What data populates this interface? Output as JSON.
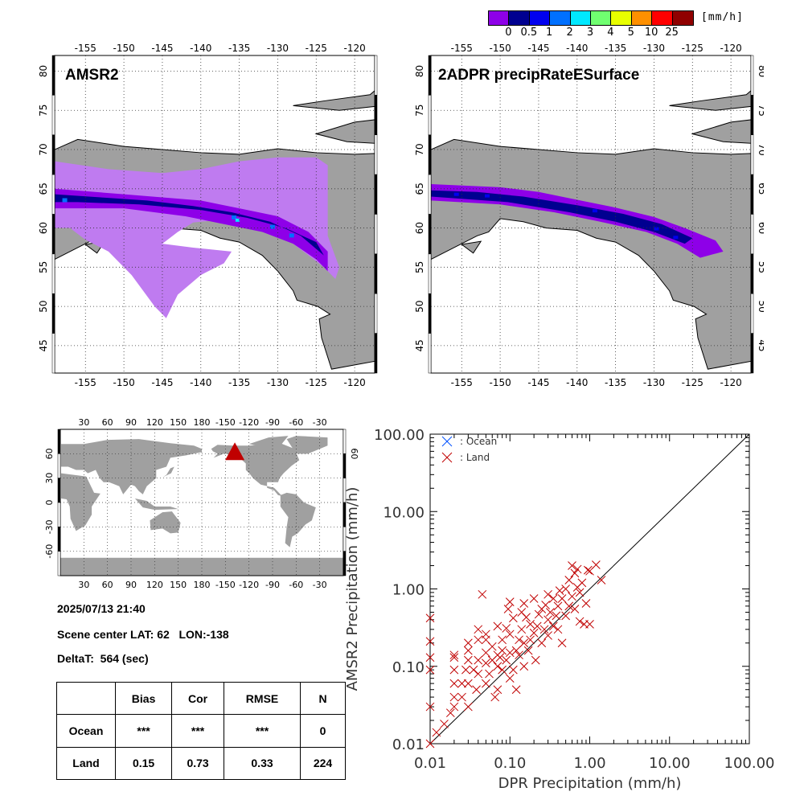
{
  "colorbar": {
    "units": "[mm/h]",
    "colors": [
      "#8e00e8",
      "#000090",
      "#0000f0",
      "#0070ff",
      "#00e8ff",
      "#70ff70",
      "#e8ff00",
      "#ff9000",
      "#ff0000",
      "#900000"
    ],
    "ticks": [
      "0",
      "0.5",
      "1",
      "2",
      "3",
      "4",
      "5",
      "10",
      "25"
    ]
  },
  "maps": {
    "lon_ticks": [
      "-155",
      "-150",
      "-145",
      "-140",
      "-135",
      "-130",
      "-125",
      "-120"
    ],
    "lat_ticks": [
      "45",
      "50",
      "55",
      "60",
      "65",
      "70",
      "75",
      "80"
    ],
    "left_title": "AMSR2",
    "right_title": "2ADPR precipRateESurface"
  },
  "globe": {
    "top_ticks": [
      "30",
      "60",
      "90",
      "120",
      "150",
      "180",
      "-150",
      "-120",
      "-90",
      "-60",
      "-30"
    ],
    "bottom_ticks": [
      "30",
      "60",
      "90",
      "120",
      "150",
      "180",
      "-150",
      "-120",
      "-90",
      "-60",
      "-30"
    ],
    "lat_ticks": [
      "60",
      "30",
      "0",
      "-30",
      "-60"
    ],
    "right_lat_ticks": [
      "60"
    ]
  },
  "info": {
    "datetime": "2025/07/13 21:40",
    "scene_center": "Scene center LAT: 62   LON:-138",
    "deltat": "DeltaT:  564 (sec)"
  },
  "stats": {
    "headers": [
      "",
      "Bias",
      "Cor",
      "RMSE",
      "N"
    ],
    "rows": [
      {
        "label": "Ocean",
        "bias": "***",
        "cor": "***",
        "rmse": "***",
        "n": "0"
      },
      {
        "label": "Land",
        "bias": "0.15",
        "cor": "0.73",
        "rmse": "0.33",
        "n": "224"
      }
    ]
  },
  "chart_data": {
    "type": "scatter",
    "xlabel": "DPR Precipitation (mm/h)",
    "ylabel": "AMSR2 Precipitation (mm/h)",
    "x_scale": "log",
    "y_scale": "log",
    "xlim": [
      0.01,
      100
    ],
    "ylim": [
      0.01,
      100
    ],
    "x_tick_labels": [
      "0.01",
      "0.10",
      "1.00",
      "10.00",
      "100.00"
    ],
    "y_tick_labels": [
      "0.01",
      "0.10",
      "1.00",
      "10.00",
      "100.00"
    ],
    "legend_placement": "top-left",
    "reference_line": "1:1",
    "series": [
      {
        "name": ": Ocean",
        "color": "#0050ff",
        "points": []
      },
      {
        "name": ": Land",
        "color": "#c00000",
        "points": [
          [
            0.01,
            0.01
          ],
          [
            0.01,
            0.03
          ],
          [
            0.01,
            0.09
          ],
          [
            0.01,
            0.13
          ],
          [
            0.01,
            0.21
          ],
          [
            0.01,
            0.42
          ],
          [
            0.012,
            0.014
          ],
          [
            0.015,
            0.018
          ],
          [
            0.018,
            0.025
          ],
          [
            0.02,
            0.03
          ],
          [
            0.02,
            0.04
          ],
          [
            0.02,
            0.06
          ],
          [
            0.02,
            0.09
          ],
          [
            0.02,
            0.13
          ],
          [
            0.02,
            0.14
          ],
          [
            0.025,
            0.04
          ],
          [
            0.025,
            0.06
          ],
          [
            0.028,
            0.09
          ],
          [
            0.03,
            0.03
          ],
          [
            0.03,
            0.06
          ],
          [
            0.03,
            0.12
          ],
          [
            0.03,
            0.16
          ],
          [
            0.03,
            0.2
          ],
          [
            0.035,
            0.09
          ],
          [
            0.038,
            0.05
          ],
          [
            0.04,
            0.08
          ],
          [
            0.04,
            0.12
          ],
          [
            0.04,
            0.22
          ],
          [
            0.04,
            0.3
          ],
          [
            0.045,
            0.85
          ],
          [
            0.05,
            0.06
          ],
          [
            0.05,
            0.11
          ],
          [
            0.05,
            0.15
          ],
          [
            0.05,
            0.22
          ],
          [
            0.05,
            0.26
          ],
          [
            0.055,
            0.08
          ],
          [
            0.06,
            0.12
          ],
          [
            0.06,
            0.18
          ],
          [
            0.065,
            0.04
          ],
          [
            0.07,
            0.05
          ],
          [
            0.07,
            0.1
          ],
          [
            0.07,
            0.14
          ],
          [
            0.07,
            0.33
          ],
          [
            0.075,
            0.13
          ],
          [
            0.08,
            0.09
          ],
          [
            0.08,
            0.16
          ],
          [
            0.08,
            0.22
          ],
          [
            0.09,
            0.12
          ],
          [
            0.09,
            0.31
          ],
          [
            0.095,
            0.55
          ],
          [
            0.1,
            0.07
          ],
          [
            0.1,
            0.15
          ],
          [
            0.1,
            0.26
          ],
          [
            0.1,
            0.68
          ],
          [
            0.11,
            0.09
          ],
          [
            0.11,
            0.42
          ],
          [
            0.12,
            0.05
          ],
          [
            0.12,
            0.16
          ],
          [
            0.13,
            0.14
          ],
          [
            0.13,
            0.22
          ],
          [
            0.14,
            0.3
          ],
          [
            0.14,
            0.5
          ],
          [
            0.15,
            0.1
          ],
          [
            0.15,
            0.2
          ],
          [
            0.15,
            0.65
          ],
          [
            0.16,
            0.43
          ],
          [
            0.17,
            0.16
          ],
          [
            0.18,
            0.22
          ],
          [
            0.18,
            0.35
          ],
          [
            0.2,
            0.27
          ],
          [
            0.2,
            0.75
          ],
          [
            0.21,
            0.12
          ],
          [
            0.22,
            0.33
          ],
          [
            0.23,
            0.47
          ],
          [
            0.25,
            0.2
          ],
          [
            0.25,
            0.55
          ],
          [
            0.27,
            0.3
          ],
          [
            0.28,
            0.62
          ],
          [
            0.3,
            0.25
          ],
          [
            0.3,
            0.4
          ],
          [
            0.3,
            0.85
          ],
          [
            0.32,
            0.5
          ],
          [
            0.35,
            0.33
          ],
          [
            0.35,
            0.75
          ],
          [
            0.38,
            0.45
          ],
          [
            0.4,
            0.3
          ],
          [
            0.4,
            0.6
          ],
          [
            0.42,
            0.95
          ],
          [
            0.45,
            0.2
          ],
          [
            0.45,
            0.75
          ],
          [
            0.5,
            0.45
          ],
          [
            0.5,
            1.0
          ],
          [
            0.55,
            0.6
          ],
          [
            0.55,
            1.3
          ],
          [
            0.6,
            0.8
          ],
          [
            0.6,
            2.0
          ],
          [
            0.65,
            0.55
          ],
          [
            0.65,
            1.6
          ],
          [
            0.7,
            1.05
          ],
          [
            0.7,
            1.8
          ],
          [
            0.75,
            0.38
          ],
          [
            0.75,
            0.9
          ],
          [
            0.8,
            1.2
          ],
          [
            0.85,
            0.35
          ],
          [
            0.9,
            0.65
          ],
          [
            0.95,
            1.75
          ],
          [
            1.0,
            0.35
          ],
          [
            1.0,
            1.7
          ],
          [
            1.2,
            2.05
          ],
          [
            1.4,
            1.3
          ]
        ]
      }
    ]
  }
}
